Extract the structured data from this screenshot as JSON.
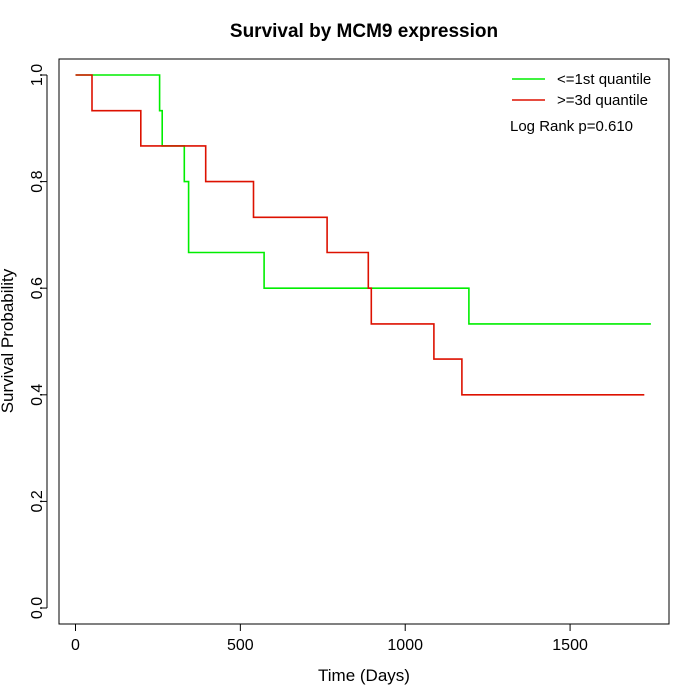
{
  "chart_data": {
    "type": "line",
    "title": "Survival by MCM9 expression",
    "xlabel": "Time (Days)",
    "ylabel": "Survival Probability",
    "xlim": [
      -50,
      1800
    ],
    "ylim": [
      -0.03,
      1.03
    ],
    "x_ticks": [
      0,
      500,
      1000,
      1500
    ],
    "x_tick_labels": [
      "0",
      "500",
      "1000",
      "1500"
    ],
    "y_ticks": [
      0.0,
      0.2,
      0.4,
      0.6,
      0.8,
      1.0
    ],
    "y_tick_labels": [
      "0.0",
      "0.2",
      "0.4",
      "0.6",
      "0.8",
      "1.0"
    ],
    "grid": false,
    "legend": "top-right",
    "annotation": "Log Rank p=0.610",
    "series": [
      {
        "name": "<=1st quantile",
        "color": "#00ee00",
        "step": true,
        "points": [
          [
            0,
            1.0
          ],
          [
            255,
            1.0
          ],
          [
            255,
            0.933
          ],
          [
            263,
            0.933
          ],
          [
            263,
            0.867
          ],
          [
            330,
            0.867
          ],
          [
            330,
            0.8
          ],
          [
            343,
            0.8
          ],
          [
            343,
            0.667
          ],
          [
            572,
            0.667
          ],
          [
            572,
            0.6
          ],
          [
            1193,
            0.6
          ],
          [
            1193,
            0.533
          ],
          [
            1745,
            0.533
          ]
        ]
      },
      {
        "name": ">=3d quantile",
        "color": "#dd1100",
        "step": true,
        "points": [
          [
            0,
            1.0
          ],
          [
            50,
            1.0
          ],
          [
            50,
            0.933
          ],
          [
            198,
            0.933
          ],
          [
            198,
            0.867
          ],
          [
            395,
            0.867
          ],
          [
            395,
            0.8
          ],
          [
            540,
            0.8
          ],
          [
            540,
            0.733
          ],
          [
            763,
            0.733
          ],
          [
            763,
            0.667
          ],
          [
            888,
            0.667
          ],
          [
            888,
            0.6
          ],
          [
            897,
            0.6
          ],
          [
            897,
            0.533
          ],
          [
            1087,
            0.533
          ],
          [
            1087,
            0.467
          ],
          [
            1172,
            0.467
          ],
          [
            1172,
            0.4
          ],
          [
            1725,
            0.4
          ]
        ]
      }
    ]
  }
}
